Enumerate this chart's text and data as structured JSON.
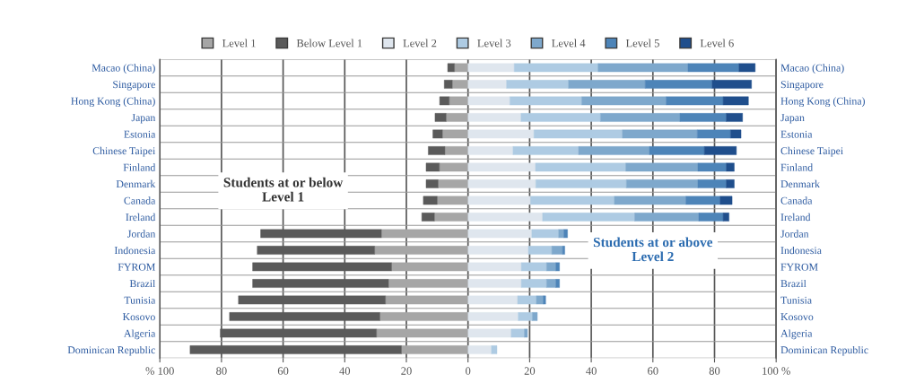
{
  "chart_data": {
    "type": "bar",
    "orientation": "horizontal",
    "stacked": true,
    "categories": [
      "Macao (China)",
      "Singapore",
      "Hong Kong (China)",
      "Japan",
      "Estonia",
      "Chinese Taipei",
      "Finland",
      "Denmark",
      "Canada",
      "Ireland",
      "Jordan",
      "Indonesia",
      "FYROM",
      "Brazil",
      "Tunisia",
      "Kosovo",
      "Algeria",
      "Dominican Republic"
    ],
    "series": [
      {
        "name": "Level 1",
        "color": "#a6a6a6",
        "values": [
          -4.4,
          -5.1,
          -6.1,
          -7.1,
          -8.3,
          -7.5,
          -9.3,
          -9.7,
          -10.0,
          -10.9,
          -28.1,
          -30.3,
          -24.8,
          -25.8,
          -26.8,
          -28.6,
          -29.7,
          -21.6
        ]
      },
      {
        "name": "Below Level 1",
        "color": "#5a5a5a",
        "values": [
          -2.2,
          -2.6,
          -3.1,
          -3.6,
          -3.1,
          -5.4,
          -4.3,
          -3.9,
          -4.5,
          -4.1,
          -39.2,
          -38.1,
          -45.1,
          -44.1,
          -47.7,
          -48.8,
          -50.7,
          -68.6
        ]
      },
      {
        "name": "Level 2",
        "color": "#dfe6ee",
        "values": [
          15.0,
          12.5,
          13.6,
          17.2,
          21.4,
          14.6,
          21.9,
          22.0,
          20.3,
          24.2,
          20.7,
          19.6,
          17.3,
          17.3,
          16.1,
          16.3,
          14.0,
          7.6
        ]
      },
      {
        "name": "Level 3",
        "color": "#aecbe3",
        "values": [
          27.2,
          20.1,
          23.3,
          25.8,
          28.7,
          21.3,
          29.3,
          29.4,
          27.2,
          29.9,
          8.7,
          7.6,
          8.2,
          8.2,
          6.1,
          4.6,
          4.3,
          1.8
        ]
      },
      {
        "name": "Level 4",
        "color": "#7ea8cc",
        "values": [
          29.2,
          24.9,
          27.4,
          25.8,
          24.3,
          23.0,
          23.4,
          23.2,
          23.2,
          20.8,
          1.7,
          3.5,
          3.0,
          3.0,
          2.2,
          1.6,
          1.0,
          null
        ]
      },
      {
        "name": "Level 5",
        "color": "#4d84b8",
        "values": [
          16.5,
          21.7,
          18.5,
          15.0,
          10.8,
          17.8,
          9.2,
          9.2,
          11.1,
          7.9,
          1.2,
          0.7,
          1.2,
          1.2,
          0.8,
          null,
          null,
          null
        ]
      },
      {
        "name": "Level 6",
        "color": "#1f4e8c",
        "values": [
          5.3,
          12.8,
          8.2,
          5.3,
          3.4,
          10.4,
          2.6,
          2.6,
          3.9,
          1.9,
          null,
          null,
          null,
          null,
          null,
          null,
          null,
          null
        ]
      }
    ],
    "xlim": [
      -100,
      100
    ],
    "xticks": [
      {
        "value": -100,
        "label": "% 100"
      },
      {
        "value": -80,
        "label": "80"
      },
      {
        "value": -60,
        "label": "60"
      },
      {
        "value": -40,
        "label": "40"
      },
      {
        "value": -20,
        "label": "20"
      },
      0,
      20,
      40,
      60,
      80,
      {
        "value": 100,
        "label": "100 %"
      }
    ],
    "grid": "x",
    "legend": "top",
    "annotations": [
      "Students at or below\nLevel 1",
      "Students at or above\nLevel 2"
    ]
  }
}
